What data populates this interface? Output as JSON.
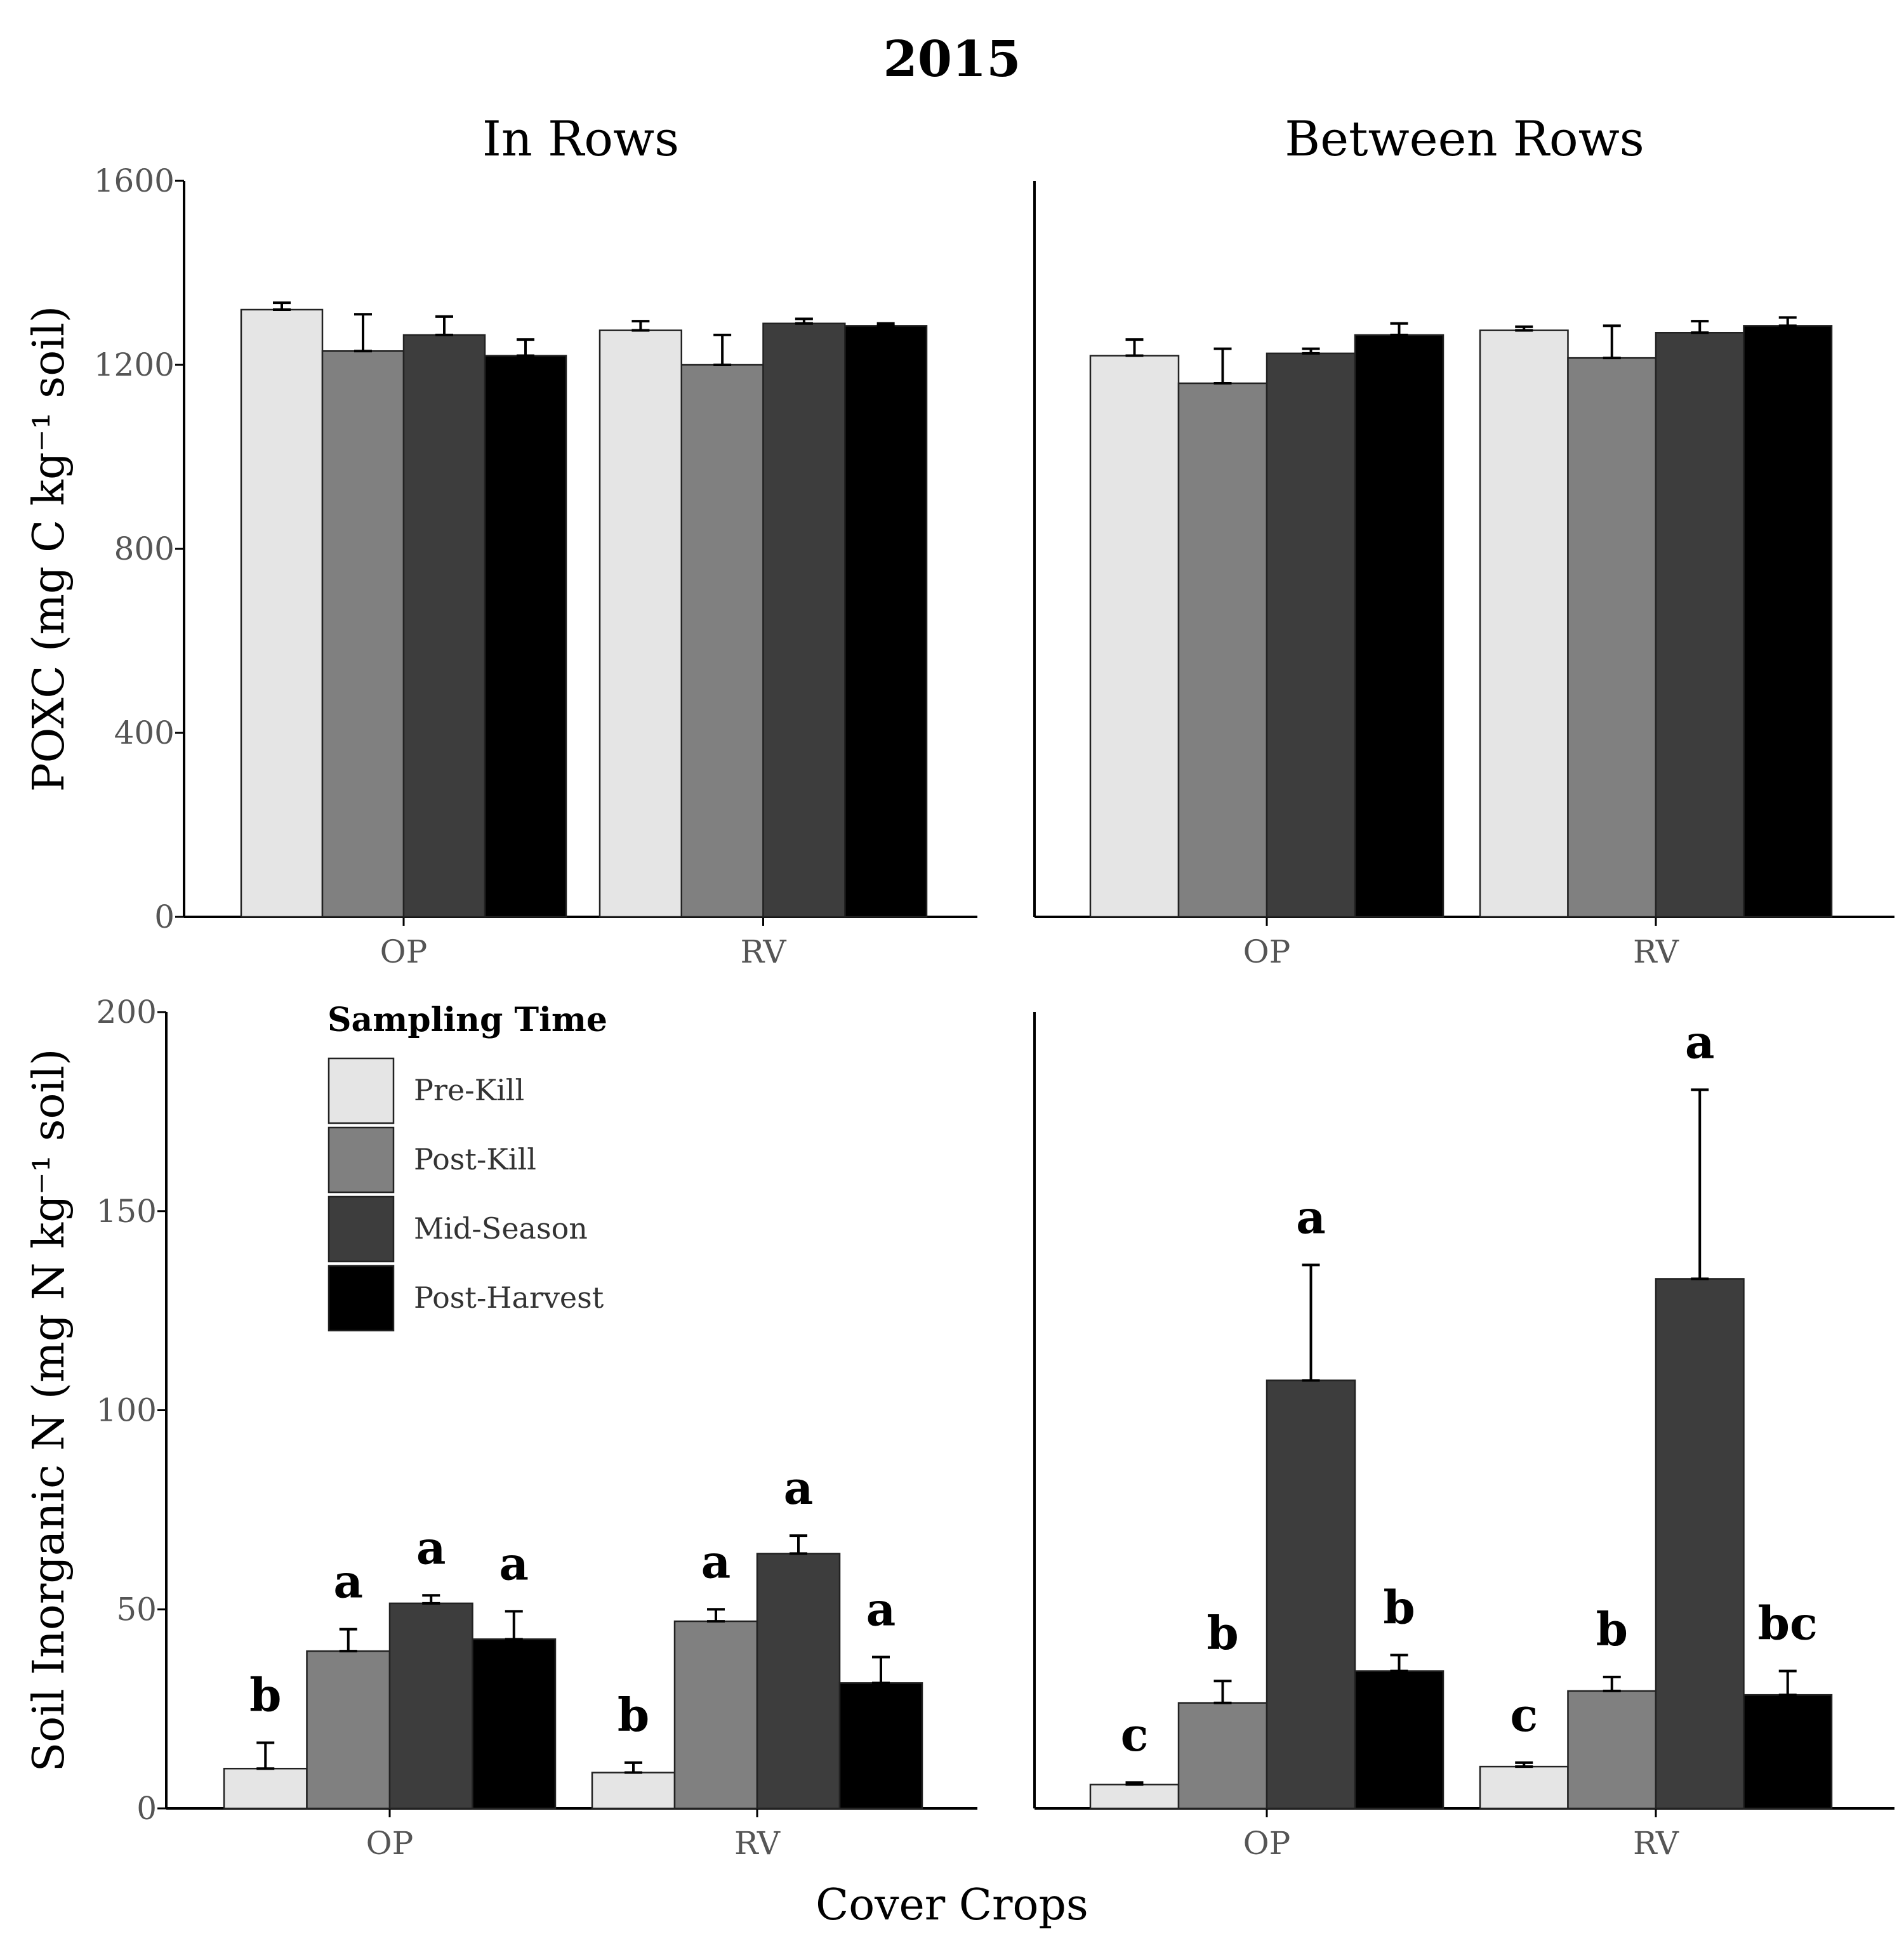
{
  "figure_title": "2015",
  "x_axis_title": "Cover Crops",
  "colors": {
    "Pre-Kill": "#e5e5e5",
    "Post-Kill": "#808080",
    "Mid-Season": "#3d3d3d",
    "Post-Harvest": "#000000"
  },
  "legend": {
    "title": "Sampling Time",
    "items": [
      "Pre-Kill",
      "Post-Kill",
      "Mid-Season",
      "Post-Harvest"
    ]
  },
  "chart_data": [
    {
      "type": "bar",
      "panel": "top-left",
      "strip_title": "In Rows",
      "ylabel": "POXC (mg C kg⁻¹ soil)",
      "ylim": [
        0,
        1600
      ],
      "yticks": [
        0,
        400,
        800,
        1200,
        1600
      ],
      "categories": [
        "OP",
        "RV"
      ],
      "series": [
        {
          "name": "Pre-Kill",
          "values": [
            1320,
            1275
          ],
          "errors": [
            15,
            20
          ],
          "letters": [
            "",
            ""
          ]
        },
        {
          "name": "Post-Kill",
          "values": [
            1230,
            1200
          ],
          "errors": [
            80,
            65
          ],
          "letters": [
            "",
            ""
          ]
        },
        {
          "name": "Mid-Season",
          "values": [
            1265,
            1290
          ],
          "errors": [
            40,
            10
          ],
          "letters": [
            "",
            ""
          ]
        },
        {
          "name": "Post-Harvest",
          "values": [
            1220,
            1285
          ],
          "errors": [
            35,
            5
          ],
          "letters": [
            "",
            ""
          ]
        }
      ]
    },
    {
      "type": "bar",
      "panel": "top-right",
      "strip_title": "Between Rows",
      "ylabel": "",
      "ylim": [
        0,
        1600
      ],
      "yticks": [],
      "categories": [
        "OP",
        "RV"
      ],
      "series": [
        {
          "name": "Pre-Kill",
          "values": [
            1220,
            1275
          ],
          "errors": [
            35,
            8
          ],
          "letters": [
            "",
            ""
          ]
        },
        {
          "name": "Post-Kill",
          "values": [
            1160,
            1215
          ],
          "errors": [
            75,
            70
          ],
          "letters": [
            "",
            ""
          ]
        },
        {
          "name": "Mid-Season",
          "values": [
            1225,
            1270
          ],
          "errors": [
            10,
            25
          ],
          "letters": [
            "",
            ""
          ]
        },
        {
          "name": "Post-Harvest",
          "values": [
            1265,
            1285
          ],
          "errors": [
            25,
            18
          ],
          "letters": [
            "",
            ""
          ]
        }
      ]
    },
    {
      "type": "bar",
      "panel": "bottom-left",
      "strip_title": "",
      "ylabel": "Soil Inorganic N (mg N kg⁻¹ soil)",
      "ylim": [
        0,
        200
      ],
      "yticks": [
        0,
        50,
        100,
        150,
        200
      ],
      "categories": [
        "OP",
        "RV"
      ],
      "series": [
        {
          "name": "Pre-Kill",
          "values": [
            10,
            9
          ],
          "errors": [
            6.5,
            2.5
          ],
          "letters": [
            "b",
            "b"
          ]
        },
        {
          "name": "Post-Kill",
          "values": [
            39.5,
            47
          ],
          "errors": [
            5.5,
            3
          ],
          "letters": [
            "a",
            "a"
          ]
        },
        {
          "name": "Mid-Season",
          "values": [
            51.5,
            64
          ],
          "errors": [
            2,
            4.5
          ],
          "letters": [
            "a",
            "a"
          ]
        },
        {
          "name": "Post-Harvest",
          "values": [
            42.5,
            31.5
          ],
          "errors": [
            7,
            6.5
          ],
          "letters": [
            "a",
            "a"
          ]
        }
      ]
    },
    {
      "type": "bar",
      "panel": "bottom-right",
      "strip_title": "",
      "ylabel": "",
      "ylim": [
        0,
        200
      ],
      "yticks": [],
      "categories": [
        "OP",
        "RV"
      ],
      "series": [
        {
          "name": "Pre-Kill",
          "values": [
            6,
            10.5
          ],
          "errors": [
            0.5,
            1
          ],
          "letters": [
            "c",
            "c"
          ]
        },
        {
          "name": "Post-Kill",
          "values": [
            26.5,
            29.5
          ],
          "errors": [
            5.5,
            3.5
          ],
          "letters": [
            "b",
            "b"
          ]
        },
        {
          "name": "Mid-Season",
          "values": [
            107.5,
            133
          ],
          "errors": [
            29,
            47.5
          ],
          "letters": [
            "a",
            "a"
          ]
        },
        {
          "name": "Post-Harvest",
          "values": [
            34.5,
            28.5
          ],
          "errors": [
            4,
            6
          ],
          "letters": [
            "b",
            "bc"
          ]
        }
      ]
    }
  ]
}
